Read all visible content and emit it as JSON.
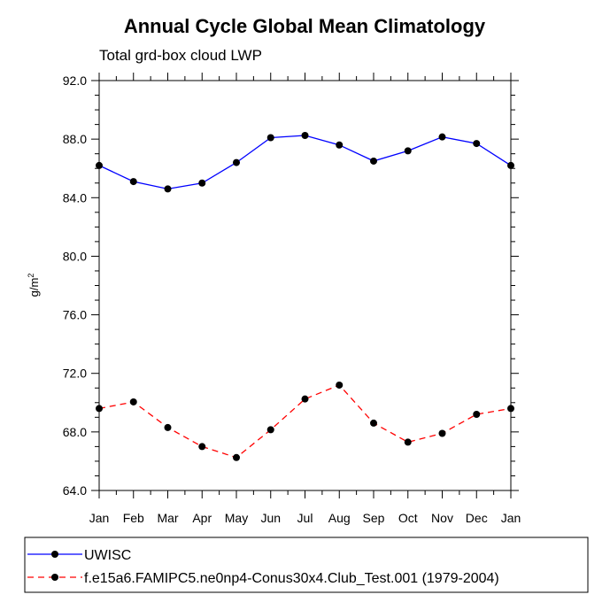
{
  "chart_data": {
    "type": "line",
    "title": "Annual Cycle Global Mean Climatology",
    "subtitle": "Total grd-box cloud LWP",
    "xlabel": "",
    "ylabel_base": "g/m",
    "ylabel_sup": "2",
    "categories": [
      "Jan",
      "Feb",
      "Mar",
      "Apr",
      "May",
      "Jun",
      "Jul",
      "Aug",
      "Sep",
      "Oct",
      "Nov",
      "Dec",
      "Jan"
    ],
    "ylim": [
      64.0,
      92.0
    ],
    "yticks": [
      "64.0",
      "68.0",
      "72.0",
      "76.0",
      "80.0",
      "84.0",
      "88.0",
      "92.0"
    ],
    "series": [
      {
        "name": "UWISC",
        "color": "#0000ff",
        "dash": "solid",
        "values": [
          86.2,
          85.1,
          84.6,
          85.0,
          86.4,
          88.1,
          88.25,
          87.6,
          86.5,
          87.2,
          88.15,
          87.7,
          86.2
        ]
      },
      {
        "name": "f.e15a6.FAMIPC5.ne0np4-Conus30x4.Club_Test.001 (1979-2004)",
        "color": "#ff0000",
        "dash": "dashed",
        "values": [
          69.6,
          70.05,
          68.3,
          67.0,
          66.25,
          68.15,
          70.25,
          71.2,
          68.6,
          67.3,
          67.9,
          69.2,
          69.6
        ]
      }
    ],
    "grid": false,
    "legend_position": "bottom"
  }
}
